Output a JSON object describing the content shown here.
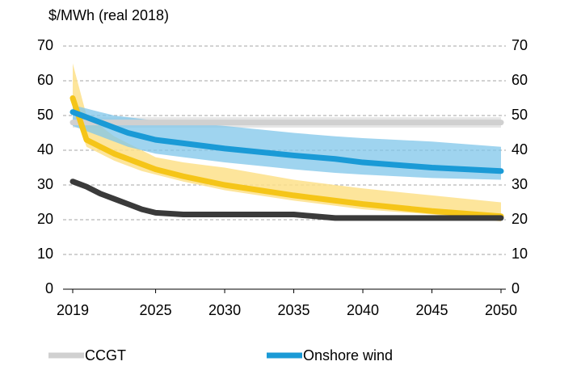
{
  "chart_data": {
    "type": "line",
    "y_label": "$/MWh (real 2018)",
    "x": [
      2019,
      2020,
      2021,
      2022,
      2023,
      2024,
      2025,
      2027,
      2030,
      2035,
      2038,
      2040,
      2045,
      2050
    ],
    "xlim": [
      2019,
      2050
    ],
    "xticks": [
      2019,
      2025,
      2030,
      2035,
      2040,
      2045,
      2050
    ],
    "ylim": [
      0,
      70
    ],
    "yticks": [
      0,
      10,
      20,
      30,
      40,
      50,
      60,
      70
    ],
    "y2lim": [
      0,
      70
    ],
    "y2ticks": [
      0,
      10,
      20,
      30,
      40,
      50,
      60,
      70
    ],
    "grid": true,
    "series": [
      {
        "name": "CCGT",
        "color": "#d0d0d0",
        "band_color": "#e2e2e2",
        "values": [
          48,
          48,
          48,
          48,
          48,
          48,
          48,
          48,
          48,
          48,
          48,
          48,
          48,
          48
        ],
        "band_low": [
          46.5,
          46.5,
          46.5,
          46.5,
          46.5,
          46.5,
          46.5,
          46.5,
          46.5,
          46.5,
          46.5,
          46.5,
          46.5,
          46.5
        ],
        "band_high": [
          49.5,
          49.5,
          49.5,
          49.5,
          49.5,
          49.5,
          49.5,
          49.5,
          49.5,
          49.5,
          49.5,
          49.5,
          49.5,
          49.5
        ]
      },
      {
        "color": "#f5c518",
        "band_color": "#fde08a",
        "values": [
          55,
          43,
          41,
          39,
          37.5,
          36,
          34.5,
          32.5,
          30,
          27,
          25.5,
          24.5,
          22.5,
          21
        ],
        "band_low": [
          52,
          41,
          39,
          37,
          35.5,
          34,
          33,
          31,
          28.5,
          25.5,
          24,
          23,
          21.5,
          19.5
        ],
        "band_high": [
          65,
          50,
          47,
          44,
          42,
          40,
          38,
          36.5,
          35,
          31.5,
          30,
          29,
          27,
          25
        ]
      },
      {
        "name": "Onshore wind",
        "color": "#1a9ad6",
        "band_color": "#7fc6ea",
        "values": [
          51,
          49.5,
          48,
          46.5,
          45,
          44,
          43,
          42,
          40.5,
          38.5,
          37.5,
          36.5,
          35,
          34
        ],
        "band_low": [
          47,
          45.5,
          44,
          42.5,
          41,
          40,
          39,
          38,
          36.5,
          34.5,
          33.5,
          33,
          32,
          31.5
        ],
        "band_high": [
          53,
          52,
          51,
          50,
          49.5,
          49,
          48.5,
          48,
          47,
          45,
          44,
          43.5,
          42.5,
          41
        ]
      },
      {
        "color": "#3a3a3a",
        "values": [
          31,
          29.5,
          27.5,
          26,
          24.5,
          23,
          22,
          21.5,
          21.5,
          21.5,
          20.5,
          20.5,
          20.5,
          20.5
        ]
      }
    ]
  }
}
